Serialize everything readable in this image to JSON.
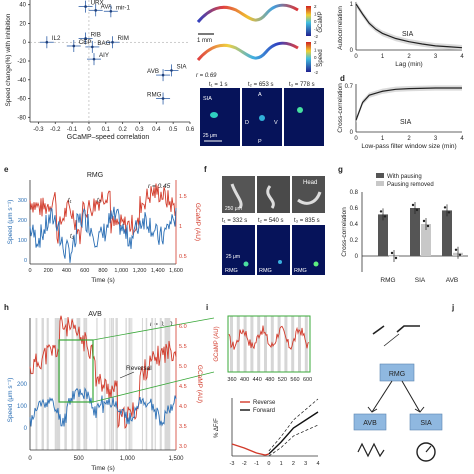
{
  "panel_letters": {
    "e": "e",
    "f": "f",
    "g": "g",
    "h": "h",
    "i": "i",
    "j": "j",
    "d": "d"
  },
  "panel_a": {
    "y_label": "Speed change(%) with inhibition",
    "x_label": "GCaMP–speed correlation",
    "x_ticks": [
      "-0.3",
      "-0.2",
      "-0.1",
      "0",
      "0.1",
      "0.2",
      "0.3",
      "0.4",
      "0.5",
      "0.6"
    ],
    "y_ticks": [
      "40",
      "20",
      "0",
      "-20",
      "-40",
      "-60",
      "-80"
    ],
    "points": [
      {
        "label": "URX",
        "x": -0.02,
        "y": 38
      },
      {
        "label": "AVA",
        "x": 0.04,
        "y": 34
      },
      {
        "label": "mir-1",
        "x": 0.13,
        "y": 33
      },
      {
        "label": "IL2",
        "x": -0.25,
        "y": 0
      },
      {
        "label": "RIB",
        "x": -0.02,
        "y": 4
      },
      {
        "label": "RIM",
        "x": 0.14,
        "y": 0
      },
      {
        "label": "CEP",
        "x": -0.09,
        "y": -4
      },
      {
        "label": "BAG",
        "x": 0.02,
        "y": -5
      },
      {
        "label": "AIY",
        "x": 0.03,
        "y": -18
      },
      {
        "label": "SIA",
        "x": 0.49,
        "y": -30
      },
      {
        "label": "AVB",
        "x": 0.44,
        "y": -35
      },
      {
        "label": "RMG",
        "x": 0.44,
        "y": -60
      }
    ]
  },
  "panel_b": {
    "colorbar_gcamp_label": "GCaMP",
    "colorbar_speed_label": "Speed",
    "cb_ticks": [
      "2",
      "1",
      "0",
      "-1",
      "-2"
    ],
    "scale_bar": "1 mm",
    "r_text": "r = 0.69",
    "time_labels": [
      "t₁ = 1 s",
      "t₂ = 653 s",
      "t₃ = 778 s"
    ],
    "image_labels": [
      "SIA",
      "A",
      "D",
      "V",
      "P"
    ],
    "scale_um": "25 μm"
  },
  "panel_c": {
    "y_label": "Autocorrelation",
    "x_label": "Lag (min)",
    "x_ticks": [
      "0",
      "1",
      "2",
      "3",
      "4"
    ],
    "y_ticks": [
      "1",
      "0"
    ],
    "label": "SIA",
    "chart_data": {
      "type": "line",
      "x": [
        0,
        0.25,
        0.5,
        0.75,
        1,
        1.5,
        2,
        2.5,
        3,
        3.5,
        4
      ],
      "values": [
        1,
        0.78,
        0.58,
        0.45,
        0.36,
        0.25,
        0.18,
        0.13,
        0.09,
        0.07,
        0.05
      ]
    }
  },
  "panel_d": {
    "y_label": "Cross-correlation",
    "x_label": "Low-pass filter window size (min)",
    "x_ticks": [
      "0",
      "1",
      "2",
      "3",
      "4"
    ],
    "y_ticks": [
      "0.7",
      "0"
    ],
    "label": "SIA",
    "chart_data": {
      "type": "line",
      "x": [
        0,
        0.25,
        0.5,
        1,
        1.5,
        2,
        3,
        4
      ],
      "values": [
        0.18,
        0.45,
        0.56,
        0.62,
        0.65,
        0.66,
        0.67,
        0.67
      ]
    }
  },
  "panel_e": {
    "title": "RMG",
    "r_text": "r = 0.45",
    "y_left": "Speed (μm s⁻¹)",
    "y_right": "GCaMP (AU)",
    "x_label": "Time (s)",
    "x_ticks": [
      "0",
      "200",
      "400",
      "600",
      "800",
      "1,000",
      "1,200",
      "1,400",
      "1,600"
    ],
    "y_left_ticks": [
      "300",
      "200",
      "100",
      "0"
    ],
    "y_right_ticks": [
      "1.5",
      "1",
      "0.5"
    ],
    "annotations": [
      "t₁",
      "t₂",
      "t₃"
    ]
  },
  "panel_f": {
    "head_label": "Head",
    "scale_top": "250 μm",
    "scale_bottom": "25 μm",
    "time_labels": [
      "t₁ = 332 s",
      "t₂ = 540 s",
      "t₃ = 835 s"
    ],
    "rmg": "RMG"
  },
  "panel_g": {
    "legend": [
      "With pausing",
      "Pausing removed"
    ],
    "y_label": "Cross-correlation",
    "y_ticks": [
      "0.8",
      "0.6",
      "0.4",
      "0.2",
      "0"
    ],
    "categories": [
      "RMG",
      "SIA",
      "AVB"
    ],
    "chart_data": {
      "type": "bar",
      "categories": [
        "RMG",
        "SIA",
        "AVB"
      ],
      "series": [
        {
          "name": "With pausing",
          "values": [
            0.52,
            0.6,
            0.57
          ]
        },
        {
          "name": "Pausing removed",
          "values": [
            0.0,
            0.4,
            0.04
          ]
        }
      ],
      "ylim": [
        -0.2,
        0.8
      ]
    }
  },
  "panel_h": {
    "title": "AVB",
    "r_text": "r = 0.70",
    "reversal": "Reversal",
    "y_left": "Speed (μm s⁻¹)",
    "y_right": "GCaMP (AU)",
    "x_label": "Time (s)",
    "x_ticks": [
      "0",
      "500",
      "1,000",
      "1,500"
    ],
    "y_left_ticks": [
      "200",
      "100",
      "0"
    ],
    "y_right_ticks": [
      "6.0",
      "5.5",
      "5.0",
      "4.5",
      "4.0",
      "3.5",
      "3.0"
    ]
  },
  "panel_i": {
    "y_top": "GCaMP (AU)",
    "x_top_ticks": [
      "360",
      "400",
      "440",
      "480",
      "520",
      "560",
      "600"
    ],
    "legend": [
      "Reverse",
      "Forward"
    ],
    "y_bottom": "% ΔF/F",
    "x_bottom_ticks": [
      "-3",
      "-2",
      "-1",
      "0",
      "1",
      "2",
      "3",
      "4"
    ]
  },
  "panel_j": {
    "nodes": [
      "RMG",
      "AVB",
      "SIA"
    ]
  },
  "colors": {
    "speed_blue": "#2b6fb5",
    "gcamp_red": "#d23a2a",
    "green_box": "#3aa83a",
    "node_blue": "#8fb8e0",
    "bar_dark": "#555555",
    "bar_light": "#c8c8c8"
  }
}
